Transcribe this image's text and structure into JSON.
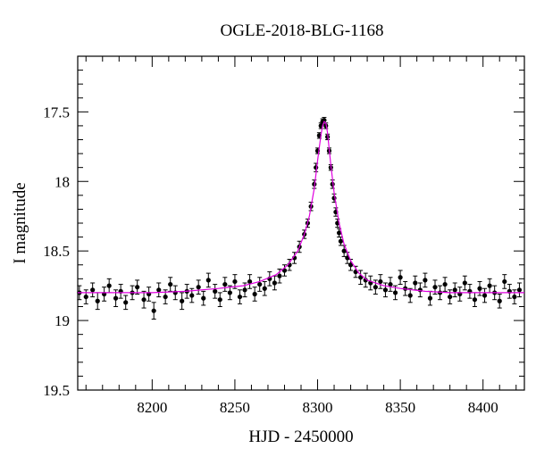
{
  "chart_data": {
    "type": "scatter",
    "title": "OGLE-2018-BLG-1168",
    "xlabel": "HJD - 2450000",
    "ylabel": "I magnitude",
    "xlim": [
      8155,
      8425
    ],
    "ylim": [
      19.5,
      17.1
    ],
    "y_inverted": true,
    "x_ticks": [
      8200,
      8250,
      8300,
      8350,
      8400
    ],
    "x_tick_labels": [
      "8200",
      "8250",
      "8300",
      "8350",
      "8400"
    ],
    "y_ticks": [
      17.5,
      18,
      18.5,
      19,
      19.5
    ],
    "y_tick_labels": [
      "17.5",
      "18",
      "18.5",
      "19",
      "19.5"
    ],
    "grid": false,
    "legend": "none",
    "point_color": "#000000",
    "model_color": "#e000e0",
    "series": [
      {
        "kind": "points_with_errorbars",
        "x": [
          8156,
          8160,
          8164,
          8167,
          8171,
          8174,
          8178,
          8181,
          8184,
          8188,
          8191,
          8195,
          8198,
          8201,
          8204,
          8208,
          8211,
          8214,
          8218,
          8221,
          8224,
          8228,
          8231,
          8234,
          8238,
          8241,
          8244,
          8247,
          8250,
          8253,
          8256,
          8259,
          8262,
          8265,
          8268,
          8271,
          8274,
          8277,
          8280,
          8283,
          8286,
          8289,
          8292,
          8294,
          8296,
          8298,
          8299,
          8300,
          8301,
          8302,
          8303,
          8304,
          8305,
          8306,
          8307,
          8308,
          8309,
          8310,
          8311,
          8312,
          8313,
          8314,
          8316,
          8318,
          8320,
          8323,
          8326,
          8329,
          8332,
          8335,
          8338,
          8341,
          8344,
          8347,
          8350,
          8353,
          8356,
          8359,
          8362,
          8365,
          8368,
          8371,
          8374,
          8377,
          8380,
          8383,
          8386,
          8389,
          8392,
          8395,
          8398,
          8401,
          8404,
          8407,
          8410,
          8413,
          8416,
          8419,
          8422
        ],
        "y": [
          18.8,
          18.83,
          18.78,
          18.86,
          18.81,
          18.75,
          18.84,
          18.79,
          18.87,
          18.8,
          18.76,
          18.85,
          18.81,
          18.93,
          18.78,
          18.83,
          18.74,
          18.8,
          18.86,
          18.79,
          18.82,
          18.76,
          18.84,
          18.71,
          18.79,
          18.85,
          18.74,
          18.8,
          18.72,
          18.83,
          18.78,
          18.72,
          18.81,
          18.74,
          18.77,
          18.7,
          18.73,
          18.68,
          18.64,
          18.6,
          18.55,
          18.47,
          18.38,
          18.3,
          18.18,
          18.02,
          17.9,
          17.78,
          17.67,
          17.6,
          17.57,
          17.56,
          17.6,
          17.68,
          17.78,
          17.9,
          18.02,
          18.12,
          18.22,
          18.3,
          18.37,
          18.43,
          18.5,
          18.55,
          18.6,
          18.65,
          18.69,
          18.71,
          18.73,
          18.76,
          18.72,
          18.78,
          18.74,
          18.8,
          18.69,
          18.77,
          18.82,
          18.73,
          18.78,
          18.71,
          18.84,
          18.76,
          18.8,
          18.74,
          18.83,
          18.78,
          18.81,
          18.73,
          18.79,
          18.85,
          18.77,
          18.82,
          18.75,
          18.8,
          18.86,
          18.72,
          18.79,
          18.83,
          18.78
        ],
        "err": [
          0.05,
          0.05,
          0.05,
          0.06,
          0.05,
          0.05,
          0.06,
          0.05,
          0.05,
          0.05,
          0.05,
          0.06,
          0.05,
          0.06,
          0.05,
          0.05,
          0.05,
          0.05,
          0.06,
          0.05,
          0.05,
          0.05,
          0.05,
          0.05,
          0.05,
          0.05,
          0.05,
          0.05,
          0.05,
          0.05,
          0.05,
          0.05,
          0.05,
          0.05,
          0.05,
          0.05,
          0.05,
          0.05,
          0.04,
          0.04,
          0.04,
          0.04,
          0.03,
          0.03,
          0.03,
          0.03,
          0.03,
          0.02,
          0.02,
          0.02,
          0.02,
          0.02,
          0.02,
          0.02,
          0.02,
          0.02,
          0.03,
          0.03,
          0.03,
          0.03,
          0.03,
          0.03,
          0.04,
          0.04,
          0.04,
          0.04,
          0.05,
          0.05,
          0.05,
          0.05,
          0.05,
          0.05,
          0.05,
          0.05,
          0.05,
          0.05,
          0.05,
          0.05,
          0.05,
          0.05,
          0.05,
          0.05,
          0.05,
          0.05,
          0.05,
          0.05,
          0.05,
          0.05,
          0.05,
          0.05,
          0.05,
          0.05,
          0.05,
          0.05,
          0.05,
          0.05,
          0.05,
          0.05,
          0.05
        ]
      },
      {
        "kind": "model_curve",
        "x": [
          8155,
          8180,
          8200,
          8220,
          8240,
          8255,
          8265,
          8275,
          8282,
          8288,
          8292,
          8295,
          8298,
          8300,
          8302,
          8303,
          8304,
          8305,
          8306,
          8308,
          8310,
          8313,
          8316,
          8320,
          8325,
          8330,
          8340,
          8350,
          8365,
          8380,
          8400,
          8425
        ],
        "y": [
          18.8,
          18.8,
          18.8,
          18.79,
          18.77,
          18.75,
          18.72,
          18.67,
          18.6,
          18.5,
          18.38,
          18.25,
          18.05,
          17.85,
          17.67,
          17.6,
          17.57,
          17.58,
          17.65,
          17.88,
          18.08,
          18.3,
          18.45,
          18.57,
          18.66,
          18.71,
          18.75,
          18.77,
          18.79,
          18.8,
          18.8,
          18.8
        ]
      }
    ]
  }
}
